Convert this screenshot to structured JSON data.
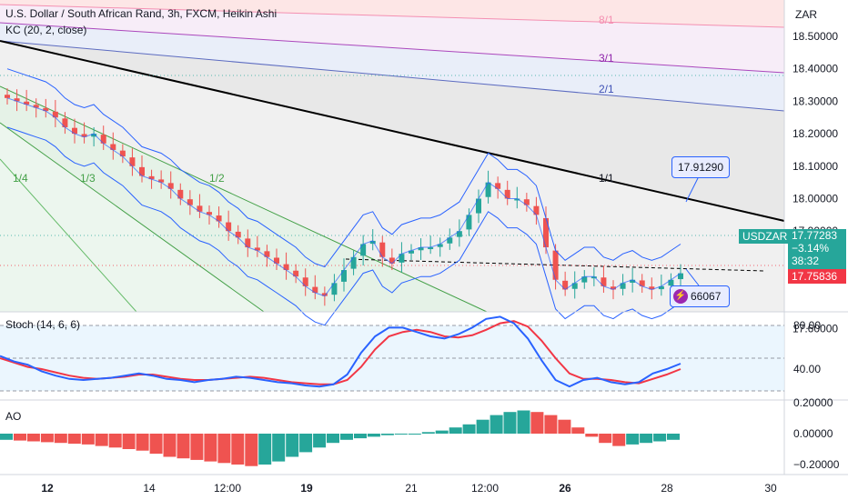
{
  "header": {
    "symbol_line": "U.S. Dollar / South African Rand, 3h, FXCM, Heikin Ashi",
    "indicator_line": "KC (20, 2, close)"
  },
  "currency": "ZAR",
  "price_axis": {
    "ticks": [
      "18.50000",
      "18.40000",
      "18.30000",
      "18.20000",
      "18.10000",
      "18.00000",
      "17.90000",
      "17.80000",
      "17.60000"
    ]
  },
  "price_tags": {
    "symbol": "USDZAR",
    "last": "17.77283",
    "change": "−3.14%",
    "countdown": "38:32",
    "low_tag": "17.75836"
  },
  "callouts": {
    "upper": "17.91290",
    "lower": "66067"
  },
  "fan_labels": [
    "8/1",
    "3/1",
    "2/1",
    "1/1",
    "1/2",
    "1/3",
    "1/4"
  ],
  "stoch": {
    "label": "Stoch (14, 6, 6)",
    "ticks": [
      "80.00",
      "40.00"
    ]
  },
  "ao": {
    "label": "AO",
    "ticks": [
      "0.20000",
      "0.00000",
      "−0.20000"
    ]
  },
  "time_axis": {
    "labels": [
      "12",
      "14",
      "12:00",
      "19",
      "21",
      "12:00",
      "26",
      "28",
      "30"
    ]
  },
  "colors": {
    "up": "#26a69a",
    "down": "#ef5350",
    "keltner": "#2962ff",
    "stoch_k": "#2962ff",
    "stoch_d": "#f23645",
    "tag_blue": "#2962ff",
    "symbol_tag": "#26a69a",
    "low_tag": "#f23645"
  },
  "chart_data": {
    "type": "candlestick",
    "title": "U.S. Dollar / South African Rand, 3h, FXCM, Heikin Ashi",
    "ylim": [
      17.55,
      18.55
    ],
    "close_trend": [
      18.31,
      18.3,
      18.29,
      18.28,
      18.27,
      18.25,
      18.22,
      18.2,
      18.19,
      18.2,
      18.17,
      18.15,
      18.13,
      18.1,
      18.07,
      18.06,
      18.05,
      18.03,
      18.0,
      17.98,
      17.96,
      17.95,
      17.93,
      17.9,
      17.88,
      17.85,
      17.84,
      17.82,
      17.8,
      17.78,
      17.76,
      17.73,
      17.71,
      17.7,
      17.74,
      17.78,
      17.82,
      17.86,
      17.87,
      17.82,
      17.8,
      17.83,
      17.84,
      17.85,
      17.85,
      17.86,
      17.88,
      17.9,
      17.95,
      18.0,
      18.05,
      18.03,
      18.0,
      18.0,
      17.98,
      17.95,
      17.85,
      17.75,
      17.72,
      17.74,
      17.76,
      17.76,
      17.73,
      17.72,
      17.74,
      17.75,
      17.73,
      17.72,
      17.73,
      17.75,
      17.77
    ],
    "stoch_k": [
      52,
      47,
      44,
      38,
      34,
      31,
      30,
      31,
      32,
      34,
      36,
      34,
      31,
      30,
      28,
      30,
      31,
      33,
      32,
      30,
      28,
      27,
      25,
      24,
      26,
      35,
      55,
      70,
      78,
      78,
      74,
      70,
      68,
      72,
      78,
      86,
      88,
      82,
      68,
      48,
      30,
      24,
      30,
      32,
      28,
      26,
      28,
      36,
      40,
      45
    ],
    "stoch_d": [
      50,
      46,
      42,
      40,
      37,
      34,
      32,
      31,
      32,
      33,
      35,
      35,
      33,
      31,
      30,
      30,
      31,
      32,
      33,
      32,
      30,
      28,
      27,
      26,
      26,
      30,
      42,
      58,
      70,
      74,
      76,
      74,
      70,
      69,
      71,
      76,
      82,
      84,
      79,
      66,
      50,
      36,
      31,
      31,
      30,
      28,
      27,
      31,
      35,
      40
    ],
    "ao": [
      -0.04,
      -0.045,
      -0.05,
      -0.055,
      -0.06,
      -0.065,
      -0.07,
      -0.08,
      -0.09,
      -0.1,
      -0.11,
      -0.13,
      -0.15,
      -0.16,
      -0.17,
      -0.18,
      -0.19,
      -0.2,
      -0.21,
      -0.2,
      -0.18,
      -0.15,
      -0.12,
      -0.09,
      -0.06,
      -0.04,
      -0.03,
      -0.02,
      -0.01,
      -0.005,
      0.0,
      0.01,
      0.02,
      0.04,
      0.06,
      0.09,
      0.12,
      0.14,
      0.15,
      0.14,
      0.12,
      0.09,
      0.04,
      -0.02,
      -0.06,
      -0.08,
      -0.07,
      -0.06,
      -0.05,
      -0.04
    ]
  }
}
